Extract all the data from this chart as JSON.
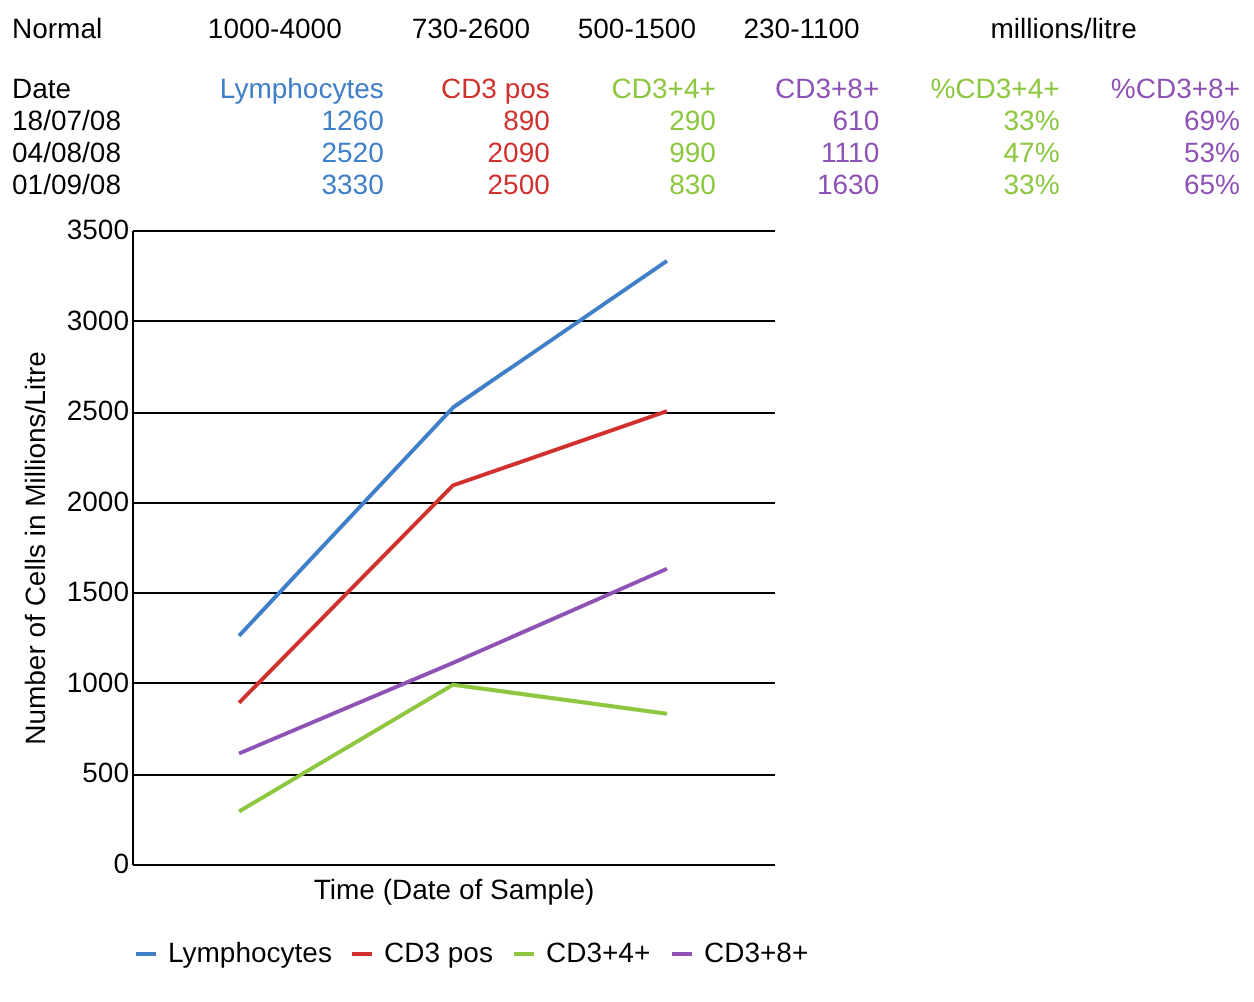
{
  "chart_data": [
    {
      "type": "other",
      "annotations": [
        "Normal",
        "1000-4000",
        "730-2600",
        "500-1500",
        "230-1100",
        "millions/litre",
        "Date",
        "Lymphocytes",
        "CD3 pos",
        "CD3+4+",
        "CD3+8+",
        "%CD3+4+",
        "%CD3+8+",
        "18/07/08",
        "1260",
        "890",
        "290",
        "610",
        "33%",
        "69%",
        "04/08/08",
        "2520",
        "2090",
        "990",
        "1110",
        "47%",
        "53%",
        "01/09/08",
        "3330",
        "2500",
        "830",
        "1630",
        "33%",
        "65%"
      ]
    },
    {
      "type": "line",
      "xlabel": "Time (Date of Sample)",
      "ylabel": "Number of Cells in Millions/Litre",
      "categories": [
        null,
        null,
        null
      ],
      "series": [
        {
          "name": "Lymphocytes",
          "color": "#3f7fc8",
          "values": [
            1260,
            2520,
            3330
          ]
        },
        {
          "name": "CD3 pos",
          "color": "#d0312d",
          "values": [
            890,
            2090,
            2500
          ]
        },
        {
          "name": "CD3+4+",
          "color": "#8dc63f",
          "values": [
            290,
            990,
            830
          ]
        },
        {
          "name": "CD3+8+",
          "color": "#8e52b5",
          "values": [
            610,
            1110,
            1630
          ]
        }
      ],
      "ylim": [
        0,
        3500
      ],
      "yticks": [
        0,
        500,
        1000,
        1500,
        2000,
        2500,
        3000,
        3500
      ],
      "grid": "y",
      "legend": "bottom",
      "tick_labels": "y",
      "line_style": "solid"
    }
  ]
}
